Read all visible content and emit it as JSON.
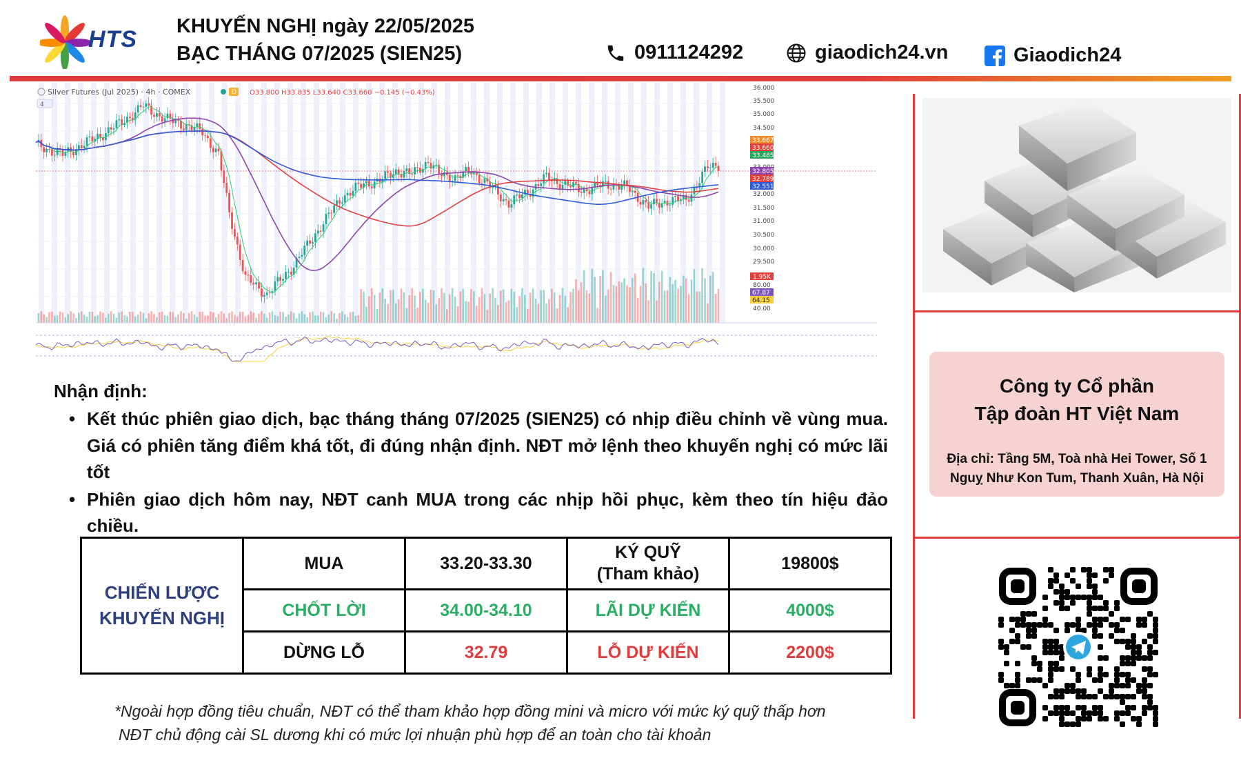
{
  "header": {
    "logo_text": "HTS",
    "title_line1": "KHUYẾN NGHỊ ngày 22/05/2025",
    "title_line2": "BẠC THÁNG 07/2025 (SIEN25)",
    "phone": "0911124292",
    "website": "giaodich24.vn",
    "facebook": "Giaodich24"
  },
  "chart": {
    "instrument": "Silver Futures (Jul 2025) · 4h · COMEX",
    "ohlc": "O33.800 H33.835 L33.640 C33.660 −0.145 (−0.43%)",
    "interval_badge": "4",
    "price_ticks": [
      "36.000",
      "35.500",
      "35.000",
      "34.500",
      "33.000",
      "32.000",
      "31.500",
      "31.000",
      "30.500",
      "30.000",
      "29.500"
    ],
    "price_labels": [
      {
        "text": "33.667",
        "color": "#f28c28"
      },
      {
        "text": "33.660",
        "color": "#e0413e"
      },
      {
        "text": "33.485",
        "color": "#26a65b"
      },
      {
        "text": "32.805",
        "color": "#8e44ad"
      },
      {
        "text": "32.789",
        "color": "#e0413e"
      },
      {
        "text": "32.551",
        "color": "#2e5bd8"
      }
    ],
    "volume_label": "1.95K",
    "rsi_ticks": [
      "80.00",
      "40.00"
    ],
    "rsi_labels": [
      {
        "text": "67.87",
        "color": "#7e57c2"
      },
      {
        "text": "64.15",
        "color": "#f4d03f"
      }
    ],
    "colors": {
      "up": "#26a69a",
      "down": "#ef5350",
      "ma_fast": "#2ecc71",
      "ma_mid": "#8e44ad",
      "ma_slow": "#e0413e",
      "ma_long": "#2e5bd8"
    }
  },
  "analysis": {
    "heading": "Nhận định:",
    "paragraphs": [
      "Kết thúc phiên giao dịch, bạc tháng tháng 07/2025 (SIEN25) có nhịp điều chỉnh về vùng mua. Giá có phiên tăng điểm khá tốt, đi đúng nhận định. NĐT mở lệnh theo khuyến nghị có mức lãi tốt",
      "Phiên giao dịch hôm nay, NĐT canh MUA trong các nhịp hồi phục, kèm theo tín hiệu đảo chiều."
    ]
  },
  "strategy": {
    "label_line1": "CHIẾN LƯỢC",
    "label_line2": "KHUYẾN NGHỊ",
    "buy_label": "MUA",
    "buy_range": "33.20-33.30",
    "margin_label_line1": "KÝ QUỸ",
    "margin_label_line2": "(Tham khảo)",
    "margin_value": "19800$",
    "take_profit_label": "CHỐT LỜI",
    "take_profit_range": "34.00-34.10",
    "expected_profit_label": "LÃI DỰ KIẾN",
    "expected_profit_value": "4000$",
    "stop_loss_label": "DỪNG LỖ",
    "stop_loss_value": "32.79",
    "expected_loss_label": "LỖ DỰ KIẾN",
    "expected_loss_value": "2200$"
  },
  "notes": {
    "line1": "*Ngoài hợp đồng tiêu chuẩn, NĐT có thể tham khảo hợp đồng mini và micro với mức ký quỹ thấp hơn",
    "line2": "NĐT chủ động cài SL dương khi có mức lợi nhuận phù hợp để an toàn cho tài khoản"
  },
  "company": {
    "name_line1": "Công ty Cổ phần",
    "name_line2": "Tập đoàn HT Việt Nam",
    "address": "Địa chỉ: Tầng 5M, Toà nhà Hei Tower, Số 1 Nguỵ Như Kon Tum, Thanh Xuân, Hà Nội"
  },
  "icons": {
    "phone": "phone-icon",
    "web": "globe-icon",
    "facebook": "facebook-icon",
    "qr": "qr-code",
    "telegram": "telegram-icon"
  }
}
